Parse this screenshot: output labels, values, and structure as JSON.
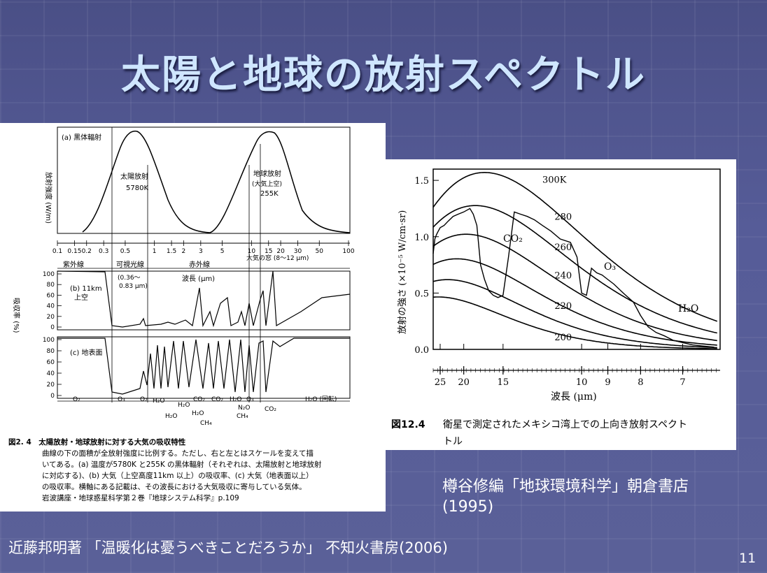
{
  "slide": {
    "title": "太陽と地球の放射スペクトル",
    "page_number": "11",
    "credit_right_line1": "樽谷修編「地球環境科学」朝倉書店",
    "credit_right_line2": "(1995)",
    "credit_bottom": "近藤邦明著 「温暖化は憂うべきことだろうか」 不知火書房(2006)"
  },
  "left_figure": {
    "panel_a_label": "(a) 黒体輻射",
    "y_label_a": "放射強度 (W/m)",
    "solar_label_1": "太陽放射",
    "solar_label_2": "5780K",
    "earth_label_1": "地球放射",
    "earth_label_2": "(大気上空)",
    "earth_label_3": "255K",
    "wavelength_ticks": [
      "0.1",
      "0.15",
      "0.2",
      "0.3",
      "0.5",
      "1",
      "1.5",
      "2",
      "3",
      "5",
      "10",
      "15",
      "20",
      "30",
      "50",
      "100"
    ],
    "region_uv": "紫外線",
    "region_visible": "可視光線",
    "region_ir": "赤外線",
    "window_label": "大気の窓 (8〜12 μm)",
    "visible_range_1": "(0.36〜",
    "visible_range_2": "0.83 μm)",
    "wavelength_label": "波長 (μm)",
    "panel_b_label_1": "(b) 11km",
    "panel_b_label_2": "上空",
    "panel_c_label": "(c) 地表面",
    "y_label_bc": "吸収率 (%)",
    "percent_ticks": [
      "100",
      "80",
      "60",
      "40",
      "20",
      "0"
    ],
    "gases": [
      "O₂",
      "O₃",
      "O₂",
      "H₂O",
      "H₂O",
      "H₂O",
      "CO₂",
      "H₂O",
      "CH₄",
      "CO₂",
      "H₂O",
      "N₂O",
      "CH₄",
      "O₃",
      "CO₂",
      "H₂O (回転)"
    ],
    "caption_title": "図2. 4　太陽放射・地球放射に対する大気の吸収特性",
    "caption_lines": [
      "曲線の下の面積が全放射強度に比例する。ただし、右と左とはスケールを変えて描",
      "いてある。(a) 温度が5780K と255K の黒体輻射（それぞれは、太陽放射と地球放射",
      "に対応する)、(b) 大気（上空高度11km 以上）の吸収率、(c) 大気（地表面以上）",
      "の吸収率。横軸にある記載は、その波長における大気吸収に寄与している気体。",
      "岩波講座・地球惑星科学第２巻『地球システム科学』p.109"
    ]
  },
  "chart_data": {
    "type": "line",
    "xlabel": "波長 (μm)",
    "ylabel": "放射の強さ (×10⁻⁵ W/cm·sr)",
    "x_ticks": [
      "25",
      "20",
      "15",
      "10",
      "9",
      "8",
      "7"
    ],
    "y_ticks": [
      "0.0",
      "0.5",
      "1.0",
      "1.5"
    ],
    "ylim": [
      0,
      1.6
    ],
    "xlim_um": [
      27,
      6.3
    ],
    "series": [
      {
        "name": "300K",
        "temperature_k": 300
      },
      {
        "name": "280",
        "temperature_k": 280
      },
      {
        "name": "260",
        "temperature_k": 260
      },
      {
        "name": "240",
        "temperature_k": 240
      },
      {
        "name": "220",
        "temperature_k": 220
      },
      {
        "name": "200",
        "temperature_k": 200
      }
    ],
    "band_labels": [
      "CO₂",
      "O₃",
      "H₂O"
    ],
    "observed": {
      "x": [
        27,
        26.5,
        26,
        25.5,
        25,
        24,
        23,
        22,
        21,
        20,
        19,
        18.5,
        18,
        17.5,
        17,
        16.5,
        16,
        15.5,
        15,
        14.5,
        14,
        13.5,
        13,
        12.5,
        12,
        11.5,
        11,
        10.5,
        10.2,
        10,
        9.8,
        9.6,
        9.4,
        9.2,
        9.0,
        8.8,
        8.5,
        8.2,
        8.0,
        7.8,
        7.6,
        7.4,
        7.2,
        7.0,
        6.8,
        6.6,
        6.4
      ],
      "y": [
        0.85,
        0.98,
        1.02,
        1.05,
        1.08,
        1.1,
        1.14,
        1.18,
        1.2,
        1.22,
        1.25,
        1.2,
        1.1,
        0.75,
        0.62,
        0.52,
        0.48,
        0.46,
        0.48,
        0.82,
        1.22,
        1.2,
        1.18,
        1.15,
        1.1,
        1.05,
        0.98,
        0.95,
        0.82,
        0.5,
        0.48,
        0.72,
        0.68,
        0.66,
        0.62,
        0.58,
        0.5,
        0.42,
        0.3,
        0.2,
        0.15,
        0.12,
        0.08,
        0.06,
        0.04,
        0.03,
        0.02
      ]
    },
    "caption_number": "図12.4",
    "caption_line1": "衛星で測定されたメキシコ湾上での上向き放射スペクト",
    "caption_line2": "トル"
  }
}
